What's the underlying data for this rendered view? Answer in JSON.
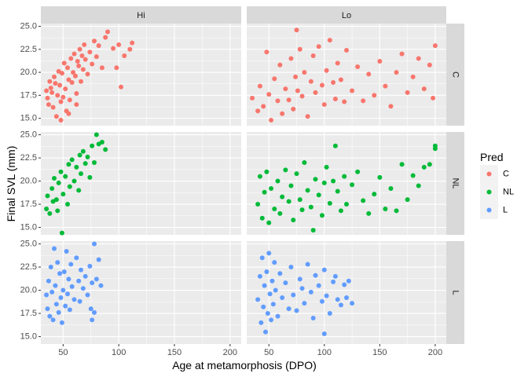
{
  "chart_data": {
    "type": "scatter",
    "facet_columns": [
      "Hi",
      "Lo"
    ],
    "facet_rows": [
      "C",
      "NL",
      "L"
    ],
    "xlabel": "Age at metamorphosis (DPO)",
    "ylabel": "Final SVL (mm)",
    "xlim": [
      30,
      210
    ],
    "ylim": [
      14.2,
      25.3
    ],
    "x_ticks": [
      50,
      100,
      150,
      200
    ],
    "y_ticks": [
      15.0,
      17.5,
      20.0,
      22.5,
      25.0
    ],
    "x_tick_labels": [
      "50",
      "100",
      "150",
      "200"
    ],
    "y_tick_labels": [
      "15.0",
      "17.5",
      "20.0",
      "22.5",
      "25.0"
    ],
    "grid": true,
    "legend": {
      "title": "Pred",
      "position": "right",
      "entries": [
        {
          "label": "C",
          "color": "#F8766D"
        },
        {
          "label": "NL",
          "color": "#00BA38"
        },
        {
          "label": "L",
          "color": "#619CFF"
        }
      ]
    },
    "colors": {
      "C": "#F8766D",
      "NL": "#00BA38",
      "L": "#619CFF"
    },
    "series": [
      {
        "row": "C",
        "col": "Hi",
        "points": [
          [
            35,
            18.0
          ],
          [
            36,
            17.2
          ],
          [
            37,
            16.5
          ],
          [
            38,
            19.0
          ],
          [
            39,
            18.3
          ],
          [
            40,
            17.8
          ],
          [
            41,
            16.2
          ],
          [
            42,
            19.5
          ],
          [
            43,
            18.8
          ],
          [
            44,
            15.2
          ],
          [
            45,
            17.5
          ],
          [
            46,
            20.1
          ],
          [
            47,
            18.6
          ],
          [
            48,
            16.8
          ],
          [
            49,
            19.9
          ],
          [
            50,
            17.3
          ],
          [
            51,
            21.0
          ],
          [
            52,
            18.2
          ],
          [
            53,
            15.8
          ],
          [
            54,
            20.5
          ],
          [
            55,
            19.2
          ],
          [
            56,
            17.0
          ],
          [
            57,
            21.5
          ],
          [
            58,
            18.9
          ],
          [
            59,
            20.0
          ],
          [
            60,
            22.0
          ],
          [
            61,
            19.6
          ],
          [
            62,
            17.7
          ],
          [
            63,
            21.2
          ],
          [
            64,
            20.7
          ],
          [
            65,
            22.5
          ],
          [
            66,
            19.0
          ],
          [
            67,
            21.8
          ],
          [
            68,
            20.3
          ],
          [
            69,
            23.0
          ],
          [
            70,
            21.4
          ],
          [
            72,
            19.8
          ],
          [
            74,
            22.2
          ],
          [
            76,
            20.9
          ],
          [
            78,
            23.4
          ],
          [
            80,
            21.7
          ],
          [
            82,
            22.9
          ],
          [
            85,
            20.5
          ],
          [
            88,
            23.8
          ],
          [
            90,
            24.4
          ],
          [
            95,
            22.6
          ],
          [
            100,
            23.0
          ],
          [
            105,
            21.8
          ],
          [
            110,
            22.5
          ],
          [
            112,
            23.2
          ],
          [
            102,
            18.4
          ],
          [
            98,
            20.5
          ],
          [
            48,
            14.8
          ],
          [
            55,
            15.5
          ],
          [
            62,
            16.5
          ]
        ]
      },
      {
        "row": "C",
        "col": "Lo",
        "points": [
          [
            35,
            17.2
          ],
          [
            40,
            15.8
          ],
          [
            42,
            18.5
          ],
          [
            45,
            16.3
          ],
          [
            48,
            22.2
          ],
          [
            50,
            17.6
          ],
          [
            52,
            14.8
          ],
          [
            55,
            19.3
          ],
          [
            58,
            16.9
          ],
          [
            60,
            20.8
          ],
          [
            62,
            15.5
          ],
          [
            65,
            18.2
          ],
          [
            68,
            17.0
          ],
          [
            70,
            21.5
          ],
          [
            72,
            16.0
          ],
          [
            74,
            19.5
          ],
          [
            75,
            24.6
          ],
          [
            76,
            18.0
          ],
          [
            78,
            22.5
          ],
          [
            80,
            17.4
          ],
          [
            82,
            20.0
          ],
          [
            85,
            15.2
          ],
          [
            88,
            19.0
          ],
          [
            90,
            21.8
          ],
          [
            92,
            17.8
          ],
          [
            95,
            22.8
          ],
          [
            98,
            18.6
          ],
          [
            100,
            16.5
          ],
          [
            102,
            20.2
          ],
          [
            105,
            23.5
          ],
          [
            108,
            18.9
          ],
          [
            110,
            17.1
          ],
          [
            112,
            21.0
          ],
          [
            115,
            19.2
          ],
          [
            118,
            16.8
          ],
          [
            120,
            22.4
          ],
          [
            125,
            18.0
          ],
          [
            130,
            20.6
          ],
          [
            135,
            16.9
          ],
          [
            140,
            19.8
          ],
          [
            145,
            17.5
          ],
          [
            150,
            21.2
          ],
          [
            155,
            18.5
          ],
          [
            160,
            16.3
          ],
          [
            165,
            20.0
          ],
          [
            170,
            22.0
          ],
          [
            175,
            17.8
          ],
          [
            180,
            19.5
          ],
          [
            185,
            21.5
          ],
          [
            190,
            18.2
          ],
          [
            195,
            20.8
          ],
          [
            200,
            22.9
          ],
          [
            198,
            17.2
          ]
        ]
      },
      {
        "row": "NL",
        "col": "Hi",
        "points": [
          [
            35,
            17.0
          ],
          [
            36,
            18.4
          ],
          [
            38,
            16.5
          ],
          [
            40,
            19.2
          ],
          [
            41,
            17.8
          ],
          [
            42,
            20.3
          ],
          [
            44,
            18.0
          ],
          [
            45,
            16.8
          ],
          [
            46,
            19.8
          ],
          [
            48,
            21.0
          ],
          [
            49,
            14.4
          ],
          [
            50,
            18.6
          ],
          [
            52,
            20.5
          ],
          [
            54,
            17.5
          ],
          [
            55,
            21.8
          ],
          [
            56,
            19.4
          ],
          [
            58,
            22.3
          ],
          [
            60,
            20.0
          ],
          [
            62,
            21.5
          ],
          [
            64,
            19.0
          ],
          [
            65,
            22.8
          ],
          [
            66,
            20.8
          ],
          [
            68,
            23.2
          ],
          [
            70,
            21.9
          ],
          [
            72,
            22.6
          ],
          [
            74,
            20.4
          ],
          [
            76,
            23.8
          ],
          [
            78,
            22.0
          ],
          [
            80,
            25.0
          ],
          [
            82,
            24.0
          ],
          [
            85,
            24.2
          ],
          [
            88,
            23.4
          ]
        ]
      },
      {
        "row": "NL",
        "col": "Lo",
        "points": [
          [
            40,
            17.5
          ],
          [
            42,
            20.5
          ],
          [
            44,
            16.0
          ],
          [
            46,
            18.8
          ],
          [
            48,
            21.0
          ],
          [
            50,
            15.5
          ],
          [
            52,
            19.2
          ],
          [
            55,
            17.0
          ],
          [
            58,
            20.0
          ],
          [
            60,
            16.5
          ],
          [
            62,
            18.3
          ],
          [
            65,
            21.2
          ],
          [
            68,
            17.8
          ],
          [
            70,
            19.5
          ],
          [
            72,
            15.8
          ],
          [
            75,
            20.8
          ],
          [
            78,
            18.0
          ],
          [
            80,
            16.9
          ],
          [
            82,
            22.0
          ],
          [
            85,
            19.0
          ],
          [
            88,
            17.2
          ],
          [
            90,
            14.7
          ],
          [
            92,
            20.2
          ],
          [
            95,
            18.5
          ],
          [
            98,
            16.3
          ],
          [
            100,
            19.8
          ],
          [
            102,
            21.5
          ],
          [
            105,
            17.6
          ],
          [
            108,
            20.0
          ],
          [
            110,
            23.8
          ],
          [
            112,
            18.9
          ],
          [
            115,
            16.8
          ],
          [
            118,
            20.5
          ],
          [
            120,
            17.5
          ],
          [
            125,
            19.6
          ],
          [
            130,
            21.0
          ],
          [
            135,
            17.9
          ],
          [
            140,
            16.5
          ],
          [
            145,
            18.6
          ],
          [
            150,
            20.4
          ],
          [
            155,
            17.0
          ],
          [
            160,
            19.2
          ],
          [
            165,
            16.8
          ],
          [
            170,
            21.8
          ],
          [
            175,
            18.0
          ],
          [
            180,
            20.6
          ],
          [
            185,
            19.5
          ],
          [
            190,
            21.5
          ],
          [
            195,
            21.8
          ],
          [
            200,
            23.8
          ],
          [
            200,
            23.5
          ]
        ]
      },
      {
        "row": "L",
        "col": "Hi",
        "points": [
          [
            35,
            19.5
          ],
          [
            36,
            18.0
          ],
          [
            37,
            21.0
          ],
          [
            38,
            17.2
          ],
          [
            39,
            22.5
          ],
          [
            40,
            19.8
          ],
          [
            41,
            16.8
          ],
          [
            42,
            24.5
          ],
          [
            43,
            20.5
          ],
          [
            44,
            18.5
          ],
          [
            45,
            23.0
          ],
          [
            46,
            17.6
          ],
          [
            47,
            21.8
          ],
          [
            48,
            19.2
          ],
          [
            49,
            16.5
          ],
          [
            50,
            20.0
          ],
          [
            51,
            22.0
          ],
          [
            52,
            18.3
          ],
          [
            53,
            24.2
          ],
          [
            54,
            19.6
          ],
          [
            55,
            21.2
          ],
          [
            56,
            17.9
          ],
          [
            57,
            22.8
          ],
          [
            58,
            20.4
          ],
          [
            60,
            19.0
          ],
          [
            62,
            23.5
          ],
          [
            64,
            21.0
          ],
          [
            65,
            18.8
          ],
          [
            66,
            22.2
          ],
          [
            68,
            20.2
          ],
          [
            70,
            21.5
          ],
          [
            72,
            19.5
          ],
          [
            74,
            22.6
          ],
          [
            75,
            18.0
          ],
          [
            76,
            20.8
          ],
          [
            78,
            25.0
          ],
          [
            80,
            21.2
          ],
          [
            82,
            23.3
          ],
          [
            84,
            20.5
          ],
          [
            76,
            16.8
          ],
          [
            78,
            17.6
          ]
        ]
      },
      {
        "row": "L",
        "col": "Lo",
        "points": [
          [
            40,
            19.0
          ],
          [
            42,
            21.5
          ],
          [
            43,
            16.5
          ],
          [
            44,
            23.5
          ],
          [
            45,
            18.2
          ],
          [
            46,
            20.5
          ],
          [
            47,
            15.5
          ],
          [
            48,
            22.0
          ],
          [
            49,
            17.5
          ],
          [
            50,
            24.0
          ],
          [
            51,
            19.6
          ],
          [
            52,
            16.8
          ],
          [
            53,
            21.0
          ],
          [
            54,
            18.5
          ],
          [
            55,
            23.0
          ],
          [
            56,
            20.0
          ],
          [
            58,
            17.2
          ],
          [
            60,
            21.8
          ],
          [
            62,
            19.2
          ],
          [
            65,
            20.8
          ],
          [
            68,
            18.0
          ],
          [
            70,
            22.5
          ],
          [
            72,
            19.5
          ],
          [
            75,
            17.8
          ],
          [
            78,
            21.2
          ],
          [
            80,
            20.2
          ],
          [
            82,
            18.6
          ],
          [
            85,
            22.8
          ],
          [
            88,
            19.8
          ],
          [
            90,
            17.0
          ],
          [
            92,
            21.6
          ],
          [
            95,
            20.5
          ],
          [
            98,
            18.8
          ],
          [
            100,
            22.2
          ],
          [
            102,
            19.4
          ],
          [
            105,
            17.5
          ],
          [
            108,
            20.9
          ],
          [
            110,
            21.5
          ],
          [
            112,
            19.0
          ],
          [
            115,
            18.4
          ],
          [
            118,
            20.6
          ],
          [
            120,
            19.2
          ],
          [
            122,
            21.0
          ],
          [
            125,
            18.6
          ],
          [
            100,
            15.3
          ]
        ]
      }
    ]
  }
}
